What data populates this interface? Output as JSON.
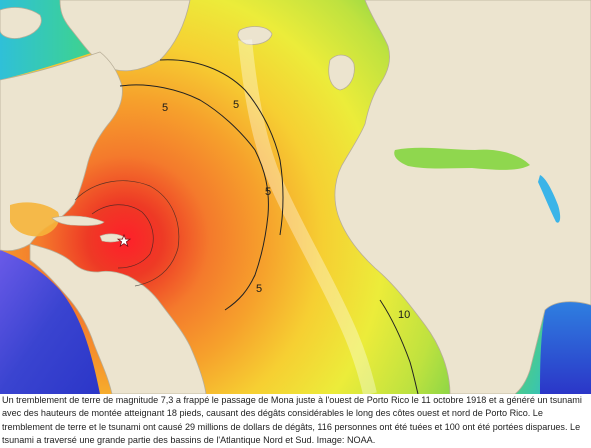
{
  "map": {
    "epicenter_icon": "star-icon",
    "contour_labels": [
      "5",
      "5",
      "5",
      "5",
      "10"
    ],
    "colors": {
      "land": "#ece4cf",
      "border": "#b8ae98",
      "ocean_far": "#2b36c8",
      "ocean_mid": "#2bb0e6",
      "ocean_green": "#7bd248",
      "ocean_yellow": "#ecec3a",
      "ocean_orange": "#f59a28",
      "ocean_red": "#e3242b",
      "contour": "#222222"
    }
  },
  "caption": {
    "text": "Un tremblement de terre de magnitude 7,3 a frappé le passage de Mona juste à l'ouest de Porto Rico le 11 octobre 1918 et a généré un tsunami avec des hauteurs de montée atteignant 18 pieds, causant des dégâts considérables le long des côtes ouest et nord de Porto Rico. Le tremblement de terre et le tsunami ont causé 29 millions de dollars de dégâts, 116 personnes ont été tuées et 100 ont été portées disparues. Le tsunami a traversé une grande partie des bassins de l'Atlantique Nord et Sud. Image: NOAA."
  }
}
